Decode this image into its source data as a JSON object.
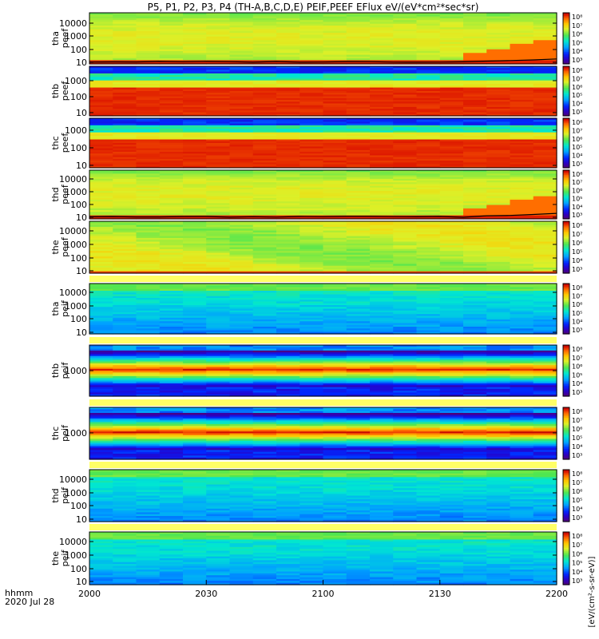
{
  "chart_data": {
    "type": "heatmap",
    "title": "P5, P1, P2, P3, P4 (TH-A,B,C,D,E) PEIF,PEEF EFlux eV/(eV*cm²*sec*sr)",
    "x_ticks": [
      "2000",
      "2030",
      "2100",
      "2130",
      "2200"
    ],
    "x_ticks_minutes": [
      0,
      30,
      60,
      90,
      120
    ],
    "xlim_minutes": [
      0,
      120
    ],
    "time_axis_label": "hhmm",
    "date_label": "2020 Jul 28",
    "colorscale": "rainbow (purple-blue-cyan-green-yellow-red)",
    "zscale": "log",
    "yscale": "log",
    "panels": [
      {
        "id": "tha-peef",
        "label_1": "tha",
        "label_2": "peef",
        "ylim": [
          5,
          30000
        ],
        "y_ticks": [
          "10",
          "100",
          "1000",
          "10000"
        ],
        "colorbar_ticks": [
          "10⁸",
          "10⁷",
          "10⁶",
          "10⁵",
          "10⁴",
          "10³"
        ],
        "pattern": "electron-warm",
        "has_line": true
      },
      {
        "id": "thb-peef",
        "label_1": "thb",
        "label_2": "peef",
        "ylim": [
          5,
          2000
        ],
        "y_ticks": [
          "10",
          "100",
          "1000"
        ],
        "colorbar_ticks": [
          "10⁸",
          "10⁷",
          "10⁶",
          "10⁵",
          "10⁴",
          "10³"
        ],
        "pattern": "electron-cold",
        "has_line": false
      },
      {
        "id": "thc-peef",
        "label_1": "thc",
        "label_2": "peef",
        "ylim": [
          5,
          2000
        ],
        "y_ticks": [
          "10",
          "100",
          "1000"
        ],
        "colorbar_ticks": [
          "10⁸",
          "10⁷",
          "10⁶",
          "10⁵",
          "10⁴",
          "10³"
        ],
        "pattern": "electron-cold",
        "has_line": false
      },
      {
        "id": "thd-peef",
        "label_1": "thd",
        "label_2": "peef",
        "ylim": [
          5,
          30000
        ],
        "y_ticks": [
          "10",
          "100",
          "1000",
          "10000"
        ],
        "colorbar_ticks": [
          "10⁸",
          "10⁷",
          "10⁶",
          "10⁵",
          "10⁴",
          "10³"
        ],
        "pattern": "electron-warm",
        "has_line": true
      },
      {
        "id": "the-peef",
        "label_1": "the",
        "label_2": "peef",
        "ylim": [
          5,
          30000
        ],
        "y_ticks": [
          "10",
          "100",
          "1000",
          "10000"
        ],
        "colorbar_ticks": [
          "10⁸",
          "10⁷",
          "10⁶",
          "10⁵",
          "10⁴",
          "10³"
        ],
        "pattern": "electron-warm2",
        "has_line": false
      },
      {
        "id": "tha-peif",
        "label_1": "tha",
        "label_2": "peif",
        "ylim": [
          5,
          30000
        ],
        "y_ticks": [
          "10",
          "100",
          "1000",
          "10000"
        ],
        "colorbar_ticks": [
          "10⁸",
          "10⁷",
          "10⁶",
          "10⁵",
          "10⁴",
          "10³"
        ],
        "pattern": "ion-cool",
        "has_line": false
      },
      {
        "id": "thb-peif",
        "label_1": "thb",
        "label_2": "peif",
        "ylim": [
          5,
          30000
        ],
        "y_ticks": [
          "1000"
        ],
        "colorbar_ticks": [
          "10⁸",
          "10⁷",
          "10⁶",
          "10⁵",
          "10⁴",
          "10³"
        ],
        "pattern": "ion-band",
        "has_line": false
      },
      {
        "id": "thc-peif",
        "label_1": "thc",
        "label_2": "peif",
        "ylim": [
          5,
          30000
        ],
        "y_ticks": [
          "1000"
        ],
        "colorbar_ticks": [
          "10⁸",
          "10⁷",
          "10⁶",
          "10⁵",
          "10⁴",
          "10³"
        ],
        "pattern": "ion-band",
        "has_line": false
      },
      {
        "id": "thd-peif",
        "label_1": "thd",
        "label_2": "peif",
        "ylim": [
          5,
          30000
        ],
        "y_ticks": [
          "10",
          "100",
          "1000",
          "10000"
        ],
        "colorbar_ticks": [
          "10⁸",
          "10⁷",
          "10⁶",
          "10⁵",
          "10⁴",
          "10³"
        ],
        "pattern": "ion-cool",
        "has_line": false
      },
      {
        "id": "the-peif",
        "label_1": "the",
        "label_2": "peif",
        "ylim": [
          5,
          30000
        ],
        "y_ticks": [
          "10",
          "100",
          "1000",
          "10000"
        ],
        "colorbar_ticks": [
          "10⁸",
          "10⁷",
          "10⁶",
          "10⁵",
          "10⁴",
          "10³"
        ],
        "pattern": "ion-cool",
        "has_line": false
      }
    ],
    "colorbar_unit_label": "[eV/(cm²-s-sr-eV)]"
  }
}
